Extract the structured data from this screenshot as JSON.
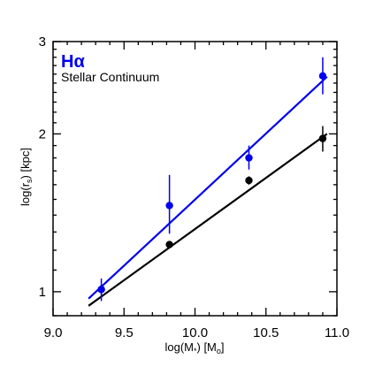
{
  "chart_data": {
    "type": "scatter",
    "xlabel": "log(M",
    "xlabel_sub": "*",
    "xlabel_rest": ") [M",
    "xlabel_sub2": "o",
    "xlabel_end": "]",
    "ylabel": "log(r",
    "ylabel_sub": "s",
    "ylabel_end": ") [kpc]",
    "xlim": [
      9.0,
      11.0
    ],
    "ylim": [
      0.9,
      3.0
    ],
    "yscale": "log",
    "x_ticks": [
      "9.0",
      "9.5",
      "10.0",
      "10.5",
      "11.0"
    ],
    "y_ticks": [
      "1",
      "2",
      "3"
    ],
    "legend_placement": "top-left",
    "series": [
      {
        "name": "Hα",
        "color": "#0000ee",
        "x": [
          9.34,
          9.82,
          10.38,
          10.9
        ],
        "y": [
          1.01,
          1.46,
          1.8,
          2.58
        ],
        "yerr_low": [
          0.05,
          0.17,
          0.09,
          0.2
        ],
        "yerr_high": [
          0.05,
          0.21,
          0.1,
          0.22
        ],
        "fit": {
          "x": [
            9.25,
            10.93
          ],
          "y": [
            0.97,
            2.57
          ]
        }
      },
      {
        "name": "Stellar Continuum",
        "color": "#000000",
        "x": [
          9.34,
          9.82,
          10.38,
          10.9
        ],
        "y": [
          1.01,
          1.23,
          1.63,
          1.96
        ],
        "yerr_low": [
          0.02,
          0.02,
          0.03,
          0.11
        ],
        "yerr_high": [
          0.02,
          0.02,
          0.03,
          0.11
        ],
        "fit": {
          "x": [
            9.25,
            10.93
          ],
          "y": [
            0.94,
            2.0
          ]
        }
      }
    ]
  }
}
